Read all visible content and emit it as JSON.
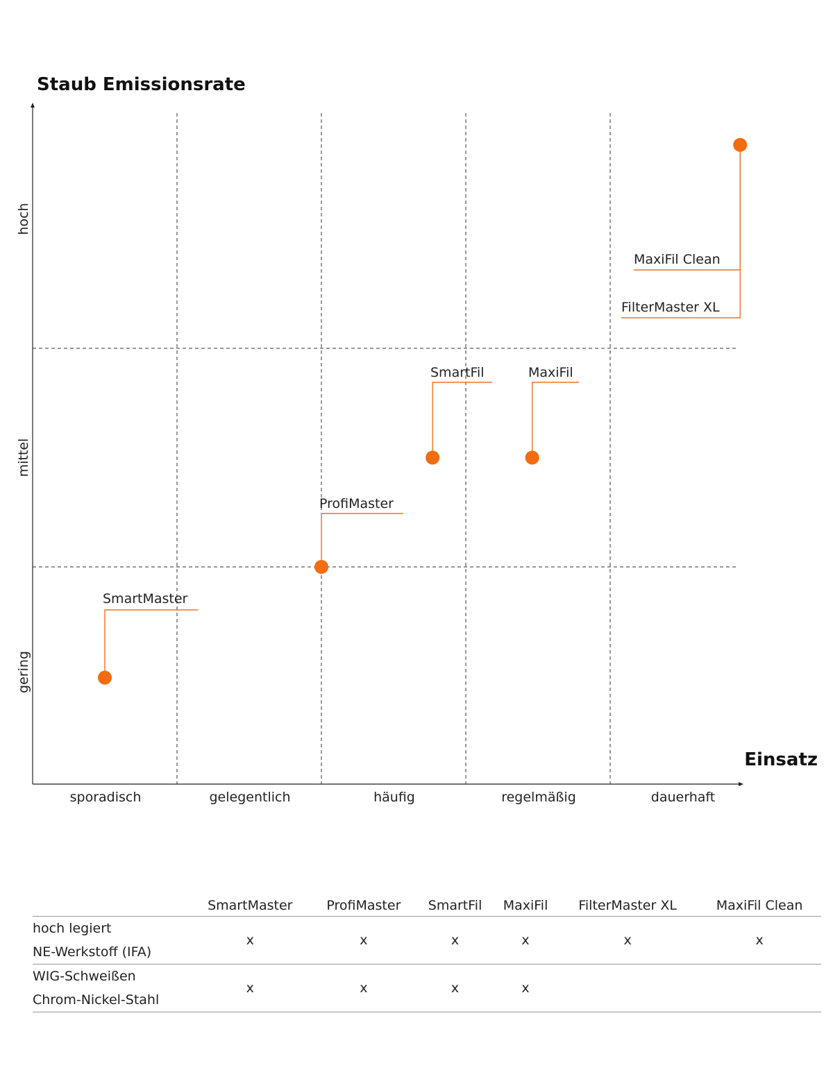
{
  "chart_data": {
    "type": "scatter",
    "title": "Staub Emissionsrate",
    "xlabel": "Einsatz",
    "x_categories": [
      "sporadisch",
      "gelegentlich",
      "häufig",
      "regelmäßig",
      "dauerhaft"
    ],
    "y_categories": [
      "gering",
      "mittel",
      "hoch"
    ],
    "xlim": [
      0,
      5
    ],
    "ylim": [
      0,
      3
    ],
    "grid": true,
    "points": [
      {
        "label": "SmartMaster",
        "x": 0.5,
        "y": 0.49
      },
      {
        "label": "ProfiMaster",
        "x": 2.0,
        "y": 1.0
      },
      {
        "label": "SmartFil",
        "x": 2.77,
        "y": 1.5
      },
      {
        "label": "MaxiFil",
        "x": 3.46,
        "y": 1.5
      },
      {
        "label": "MaxiFil Clean",
        "x": 4.9,
        "y": 2.87
      },
      {
        "label": "FilterMaster XL",
        "x": 4.9,
        "y": 2.87
      }
    ],
    "point_color": "#f26c11"
  },
  "table": {
    "columns": [
      "SmartMaster",
      "ProfiMaster",
      "SmartFil",
      "MaxiFil",
      "FilterMaster XL",
      "MaxiFil Clean"
    ],
    "rows": [
      {
        "label_lines": [
          "hoch legiert",
          "NE-Werkstoff (IFA)"
        ],
        "cells": [
          "x",
          "x",
          "x",
          "x",
          "x",
          "x"
        ]
      },
      {
        "label_lines": [
          "WIG-Schweißen",
          "Chrom-Nickel-Stahl"
        ],
        "cells": [
          "x",
          "x",
          "x",
          "x",
          "",
          ""
        ]
      }
    ]
  }
}
